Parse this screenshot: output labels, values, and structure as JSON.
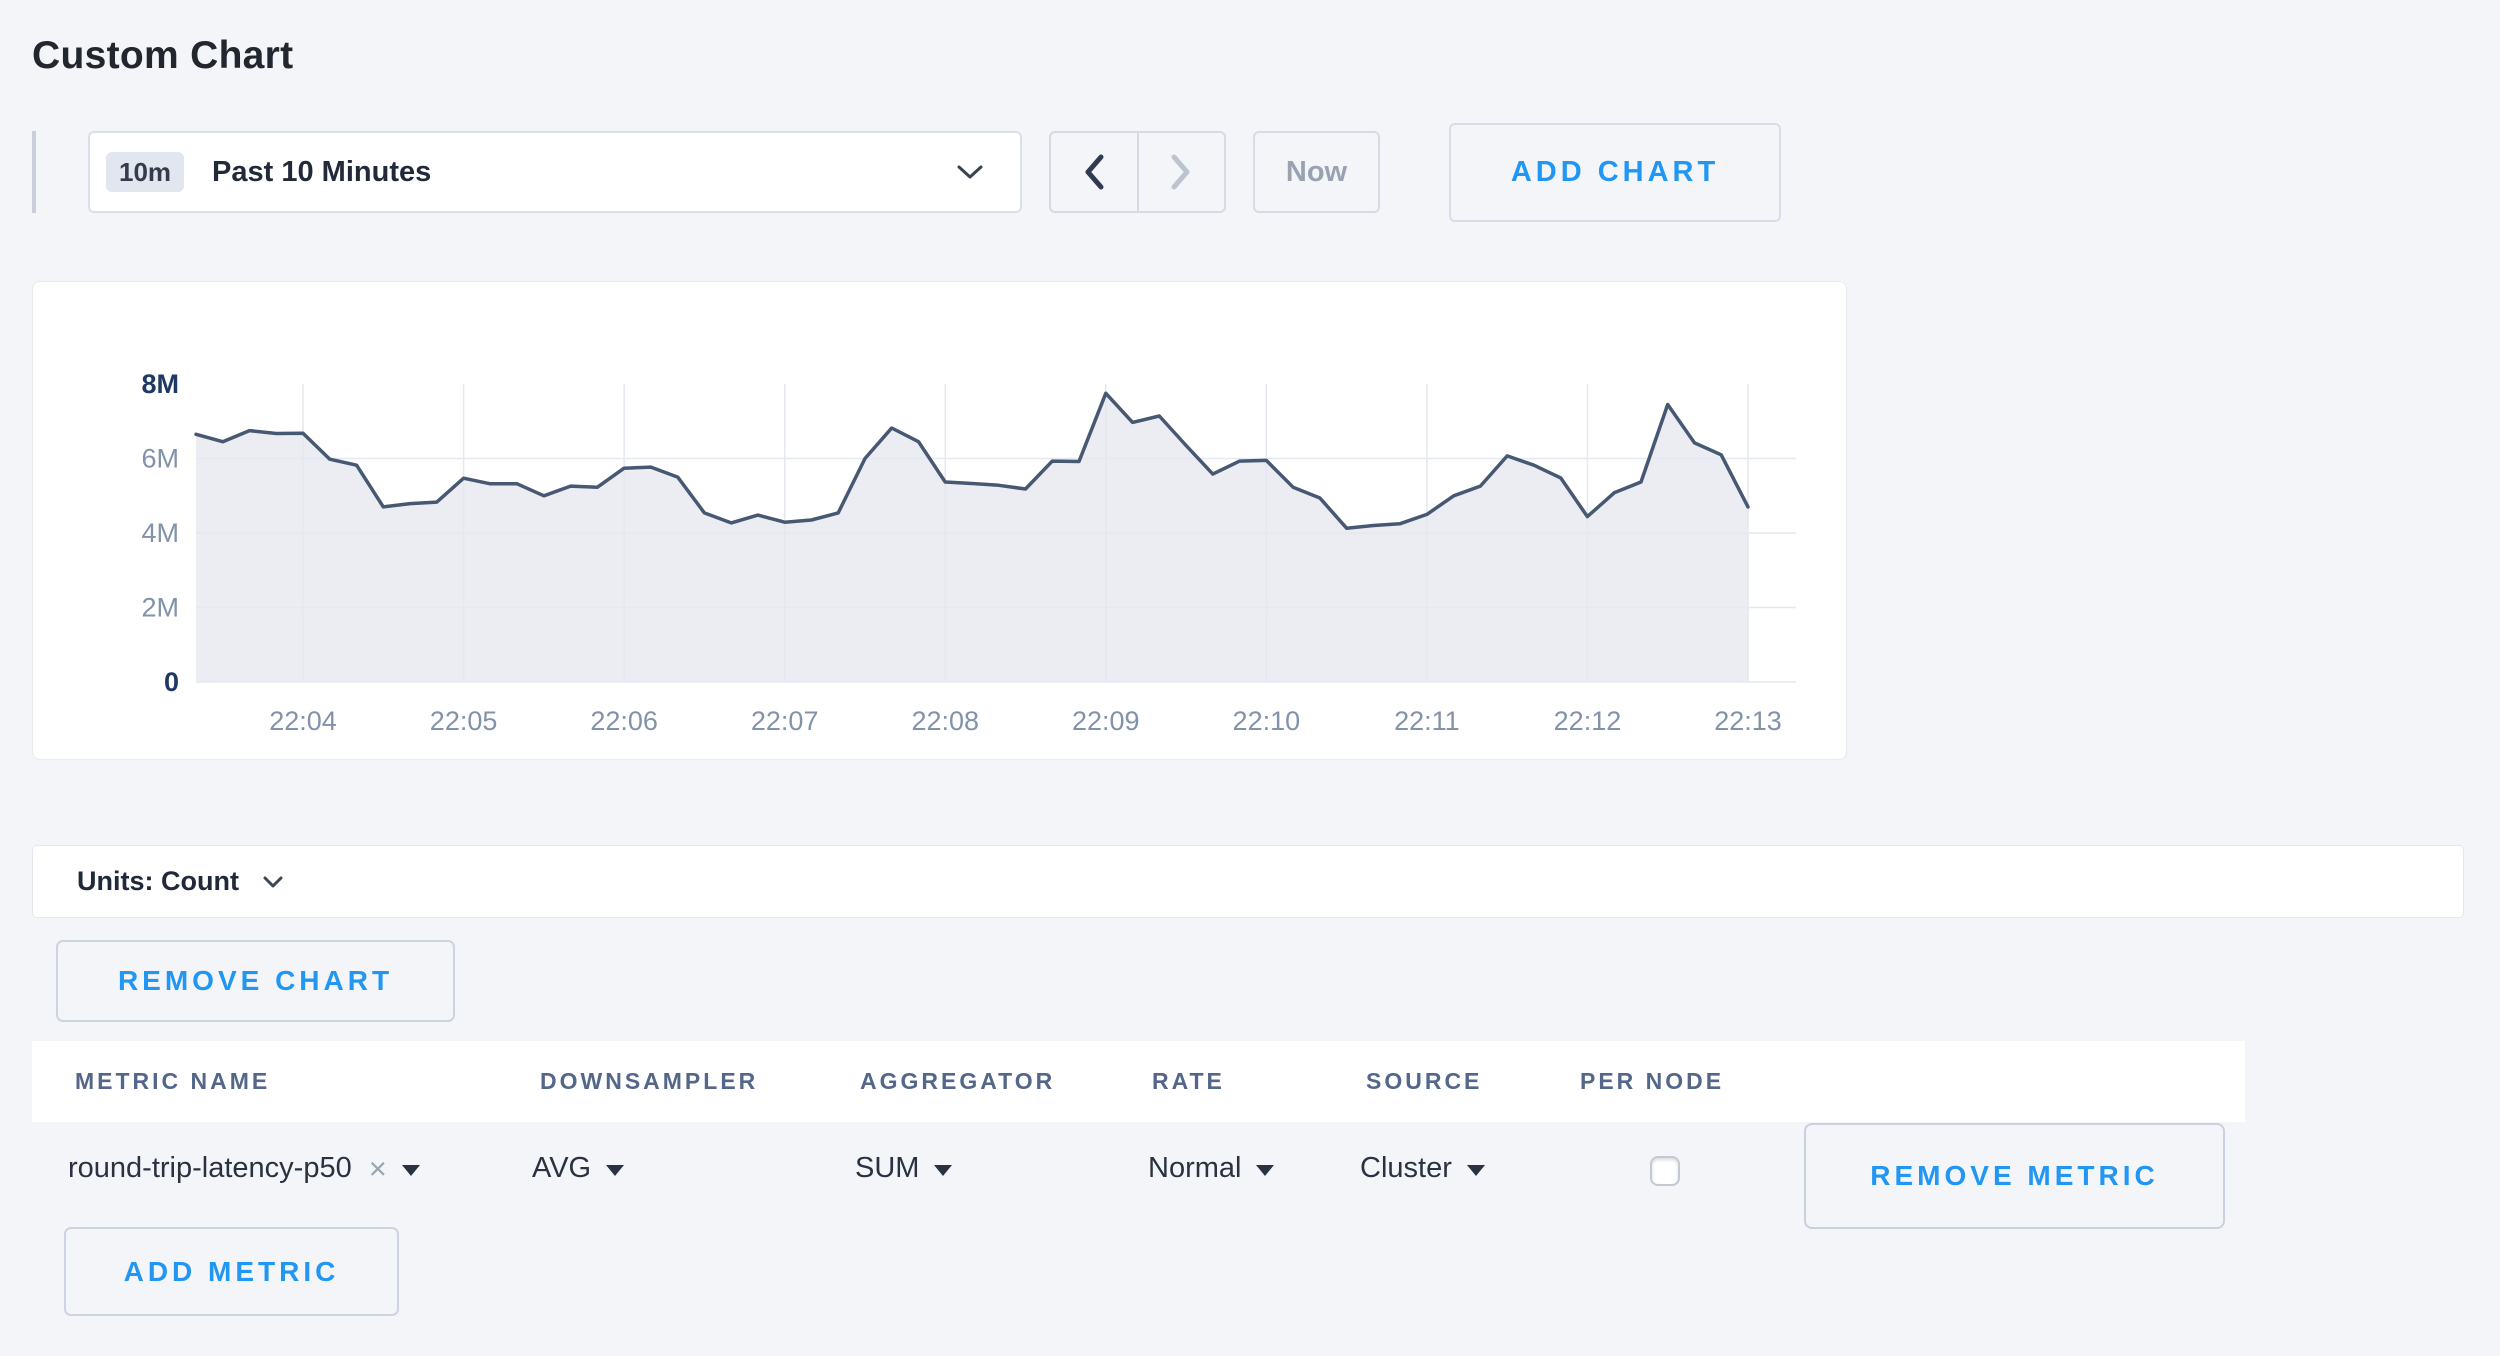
{
  "page": {
    "title": "Custom Chart",
    "background": "#f4f5f8",
    "accent_blue": "#2196f3"
  },
  "toolbar": {
    "time_window_badge": "10m",
    "time_window_label": "Past 10 Minutes",
    "now_label": "Now",
    "add_chart_label": "ADD CHART"
  },
  "icons": {
    "chevron_down": "v-shaped stroke chevron",
    "chevron_left": "‹",
    "chevron_right": "›",
    "dropdown_caret": "▼",
    "clear_x": "×"
  },
  "chart_data": {
    "type": "area",
    "title": "",
    "xlabel": "",
    "ylabel": "",
    "x_ticks": [
      "22:04",
      "22:05",
      "22:06",
      "22:07",
      "22:08",
      "22:09",
      "22:10",
      "22:11",
      "22:12",
      "22:13"
    ],
    "first_tick_point": 4,
    "points_per_tick": 6,
    "y_ticks": [
      {
        "label": "0",
        "value_millions": 0,
        "emphasis": true
      },
      {
        "label": "2M",
        "value_millions": 2,
        "emphasis": false
      },
      {
        "label": "4M",
        "value_millions": 4,
        "emphasis": false
      },
      {
        "label": "6M",
        "value_millions": 6,
        "emphasis": false
      },
      {
        "label": "8M",
        "value_millions": 8,
        "emphasis": true
      }
    ],
    "y_grid_values_millions": [
      0,
      2,
      4,
      6
    ],
    "ylim_millions": [
      0,
      8
    ],
    "grid": true,
    "legend": "none",
    "values_millions": [
      6.65,
      6.45,
      6.75,
      6.67,
      6.68,
      5.98,
      5.82,
      4.7,
      4.79,
      4.83,
      5.47,
      5.32,
      5.32,
      5.0,
      5.26,
      5.23,
      5.74,
      5.77,
      5.5,
      4.54,
      4.27,
      4.48,
      4.29,
      4.35,
      4.54,
      6.0,
      6.82,
      6.45,
      5.37,
      5.33,
      5.28,
      5.18,
      5.93,
      5.92,
      7.75,
      6.97,
      7.14,
      6.35,
      5.58,
      5.93,
      5.95,
      5.23,
      4.94,
      4.13,
      4.2,
      4.25,
      4.5,
      5.0,
      5.26,
      6.07,
      5.82,
      5.48,
      4.44,
      5.08,
      5.37,
      7.45,
      6.42,
      6.1,
      4.7
    ],
    "line_color": "#475872",
    "fill_color": "#ebedf3",
    "grid_color": "#e4e8f0",
    "axis_label_color": "#8292a9",
    "axis_label_strong_color": "#1d3964"
  },
  "units_bar": {
    "label": "Units: Count"
  },
  "chart_actions": {
    "remove_chart_label": "REMOVE CHART",
    "add_metric_label": "ADD METRIC"
  },
  "metrics_table": {
    "headers": [
      "METRIC NAME",
      "DOWNSAMPLER",
      "AGGREGATOR",
      "RATE",
      "SOURCE",
      "PER NODE"
    ],
    "rows": [
      {
        "metric_name": "round-trip-latency-p50",
        "downsampler": "AVG",
        "aggregator": "SUM",
        "rate": "Normal",
        "source": "Cluster",
        "per_node_checked": false,
        "remove_label": "REMOVE METRIC"
      }
    ]
  }
}
